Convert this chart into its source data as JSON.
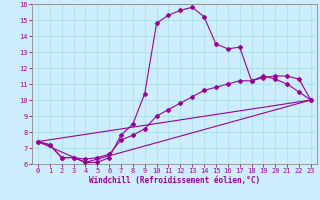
{
  "xlabel": "Windchill (Refroidissement éolien,°C)",
  "bg_color": "#cceeff",
  "line_color": "#990099",
  "xlim": [
    -0.5,
    23.5
  ],
  "ylim": [
    6,
    16
  ],
  "xticks": [
    0,
    1,
    2,
    3,
    4,
    5,
    6,
    7,
    8,
    9,
    10,
    11,
    12,
    13,
    14,
    15,
    16,
    17,
    18,
    19,
    20,
    21,
    22,
    23
  ],
  "yticks": [
    6,
    7,
    8,
    9,
    10,
    11,
    12,
    13,
    14,
    15,
    16
  ],
  "main_x": [
    0,
    1,
    2,
    3,
    4,
    5,
    6,
    7,
    8,
    9,
    10,
    11,
    12,
    13,
    14,
    15,
    16,
    17,
    18,
    19,
    20,
    21,
    22,
    23
  ],
  "main_y": [
    7.4,
    7.2,
    6.4,
    6.4,
    6.1,
    6.1,
    6.4,
    7.8,
    8.5,
    10.4,
    14.8,
    15.3,
    15.6,
    15.8,
    15.2,
    13.5,
    13.2,
    13.3,
    11.2,
    11.5,
    11.3,
    11.0,
    10.5,
    10.0
  ],
  "line2_x": [
    0,
    1,
    2,
    3,
    4,
    5,
    6,
    7,
    8,
    9,
    10,
    11,
    12,
    13,
    14,
    15,
    16,
    17,
    18,
    19,
    20,
    21,
    22,
    23
  ],
  "line2_y": [
    7.4,
    7.2,
    6.4,
    6.4,
    6.3,
    6.4,
    6.6,
    7.5,
    7.8,
    8.2,
    9.0,
    9.4,
    9.8,
    10.2,
    10.6,
    10.8,
    11.0,
    11.2,
    11.2,
    11.4,
    11.5,
    11.5,
    11.3,
    10.0
  ],
  "line3_x": [
    0,
    23
  ],
  "line3_y": [
    7.4,
    10.0
  ],
  "line4_x": [
    0,
    4,
    23
  ],
  "line4_y": [
    7.4,
    6.1,
    10.0
  ]
}
